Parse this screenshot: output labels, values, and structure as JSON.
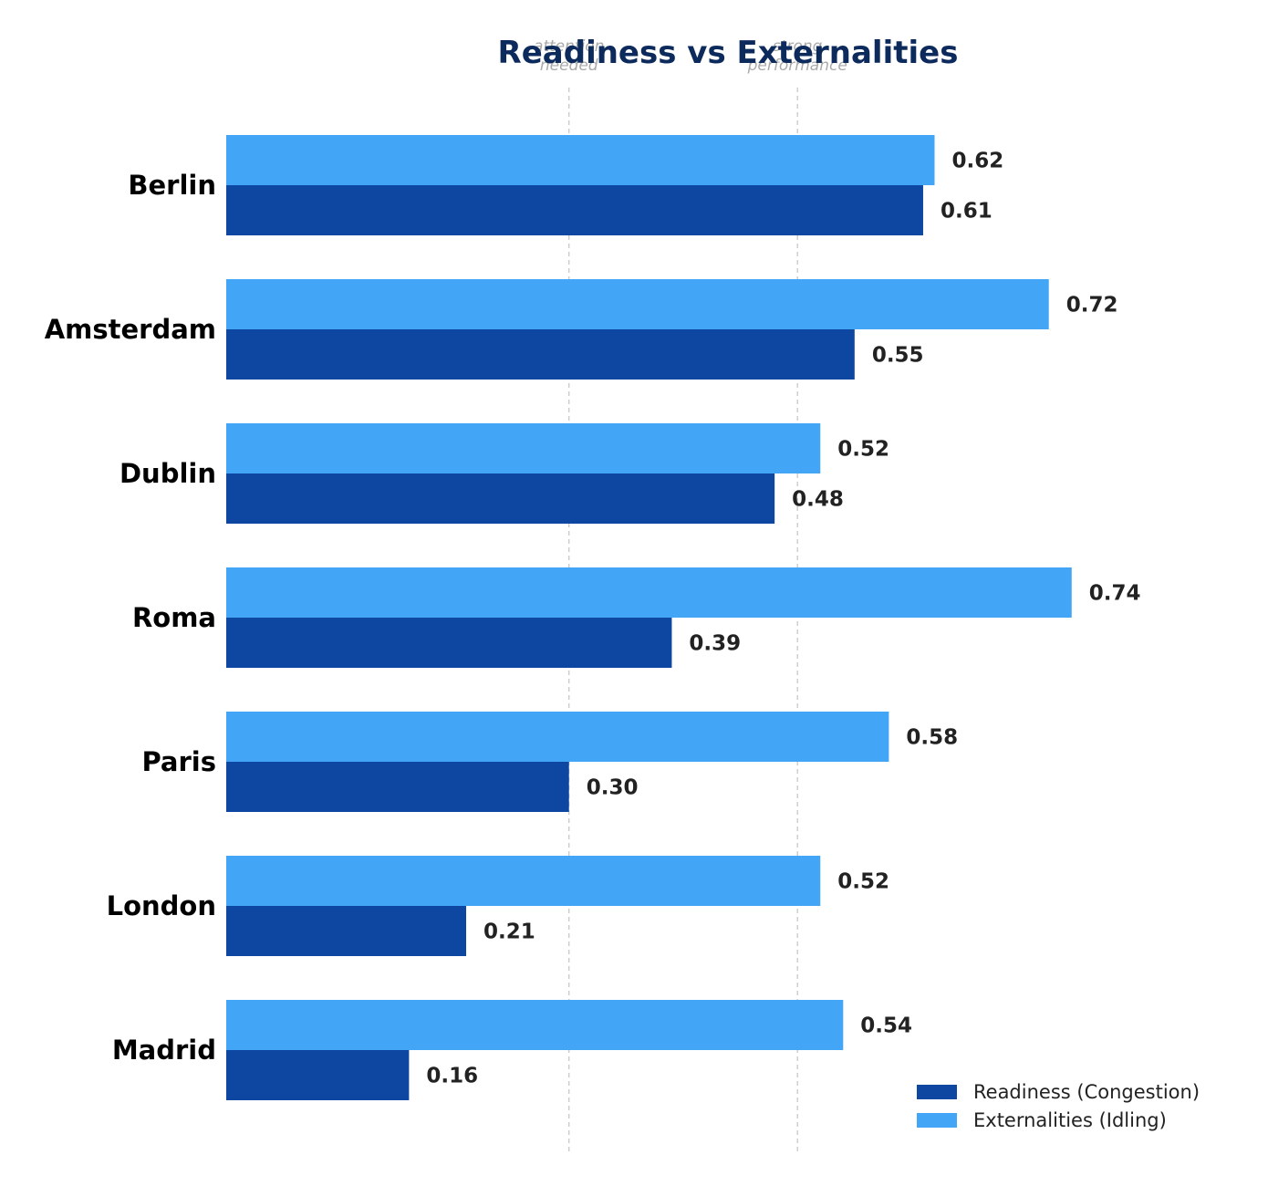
{
  "chart_data": {
    "type": "bar",
    "orientation": "horizontal",
    "title": "Readiness vs Externalities",
    "xlabel": "",
    "ylabel": "",
    "xlim": [
      0,
      0.82
    ],
    "grid": false,
    "categories": [
      "Berlin",
      "Amsterdam",
      "Dublin",
      "Roma",
      "Paris",
      "London",
      "Madrid"
    ],
    "series": [
      {
        "name": "Readiness (Congestion)",
        "color": "#0d47a1",
        "values": [
          0.61,
          0.55,
          0.48,
          0.39,
          0.3,
          0.21,
          0.16
        ]
      },
      {
        "name": "Externalities (Idling)",
        "color": "#42a5f5",
        "values": [
          0.62,
          0.72,
          0.52,
          0.74,
          0.58,
          0.52,
          0.54
        ]
      }
    ],
    "reference_lines": [
      {
        "value": 0.3,
        "label_line1": "attention",
        "label_line2": "needed"
      },
      {
        "value": 0.5,
        "label_line1": "strong",
        "label_line2": "performance"
      }
    ],
    "value_format": "0.00",
    "legend_position": "bottom-right",
    "colors": {
      "title": "#0d2a5c",
      "category_text": "#000000",
      "value_text": "#222222",
      "reference_line": "#c8c8c8",
      "reference_text": "#aaaaaa"
    }
  }
}
